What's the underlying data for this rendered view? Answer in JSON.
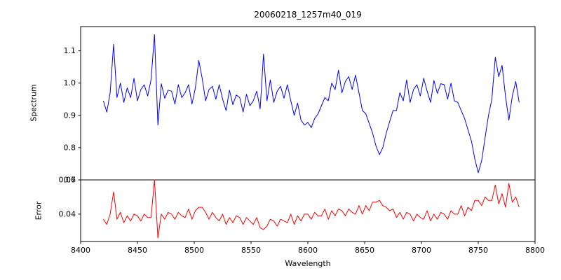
{
  "title": "20060218_1257m40_019",
  "xlabel": "Wavelength",
  "x_axis": {
    "label": "Wavelength",
    "xlim": [
      8400,
      8800
    ],
    "ticks": [
      8400,
      8450,
      8500,
      8550,
      8600,
      8650,
      8700,
      8750,
      8800
    ],
    "tick_labels": [
      "8400",
      "8450",
      "8500",
      "8550",
      "8600",
      "8650",
      "8700",
      "8750",
      "8800"
    ]
  },
  "chart_data": [
    {
      "type": "line",
      "name": "spectrum",
      "ylabel": "Spectrum",
      "color": "#0000ff",
      "xlim": [
        8400,
        8800
      ],
      "ylim": [
        0.7,
        1.175
      ],
      "ytick_values": [
        0.7,
        0.8,
        0.9,
        1.0,
        1.1
      ],
      "ytick_labels": [
        "0.7",
        "0.8",
        "0.9",
        "1.0",
        "1.1"
      ],
      "x_start": 8420,
      "x_step": 3,
      "values": [
        0.945,
        0.91,
        0.97,
        1.12,
        0.955,
        1.0,
        0.94,
        0.985,
        0.955,
        1.015,
        0.945,
        0.98,
        0.995,
        0.96,
        1.01,
        1.15,
        0.87,
        0.998,
        0.953,
        0.978,
        0.975,
        0.935,
        0.995,
        0.955,
        0.97,
        0.995,
        0.935,
        0.985,
        1.07,
        1.015,
        0.945,
        0.98,
        0.99,
        0.95,
        0.995,
        0.95,
        0.915,
        0.978,
        0.933,
        0.963,
        0.955,
        0.91,
        0.965,
        0.93,
        0.945,
        0.975,
        0.92,
        1.09,
        0.945,
        1.01,
        0.94,
        0.975,
        0.99,
        0.953,
        0.995,
        0.945,
        0.9,
        0.938,
        0.885,
        0.87,
        0.878,
        0.862,
        0.89,
        0.905,
        0.93,
        0.955,
        0.945,
        1.0,
        0.98,
        1.04,
        0.97,
        1.005,
        1.02,
        0.98,
        1.025,
        0.97,
        0.915,
        0.905,
        0.875,
        0.845,
        0.805,
        0.778,
        0.8,
        0.845,
        0.88,
        0.915,
        0.915,
        0.97,
        0.945,
        1.01,
        0.94,
        0.98,
        0.995,
        0.96,
        1.015,
        0.975,
        0.94,
        1.008,
        0.968,
        0.998,
        0.995,
        0.95,
        1.0,
        0.945,
        0.94,
        0.915,
        0.89,
        0.855,
        0.82,
        0.765,
        0.722,
        0.76,
        0.83,
        0.9,
        0.95,
        1.08,
        1.02,
        1.055,
        0.958,
        0.885,
        0.96,
        1.005,
        0.94
      ]
    },
    {
      "type": "line",
      "name": "error",
      "ylabel": "Error",
      "color": "#ff0000",
      "xlim": [
        8400,
        8800
      ],
      "ylim": [
        0.024,
        0.06
      ],
      "ytick_values": [
        0.04,
        0.06
      ],
      "ytick_labels": [
        "0.04",
        "0.06"
      ],
      "x_start": 8420,
      "x_step": 3,
      "values": [
        0.037,
        0.034,
        0.04,
        0.053,
        0.037,
        0.041,
        0.035,
        0.039,
        0.036,
        0.04,
        0.039,
        0.036,
        0.04,
        0.038,
        0.038,
        0.06,
        0.026,
        0.04,
        0.037,
        0.041,
        0.04,
        0.037,
        0.041,
        0.039,
        0.038,
        0.043,
        0.037,
        0.042,
        0.044,
        0.044,
        0.041,
        0.037,
        0.041,
        0.038,
        0.036,
        0.04,
        0.034,
        0.038,
        0.035,
        0.039,
        0.038,
        0.034,
        0.038,
        0.036,
        0.034,
        0.038,
        0.032,
        0.031,
        0.033,
        0.037,
        0.036,
        0.033,
        0.037,
        0.036,
        0.035,
        0.04,
        0.034,
        0.039,
        0.036,
        0.04,
        0.04,
        0.037,
        0.041,
        0.039,
        0.039,
        0.043,
        0.037,
        0.042,
        0.039,
        0.043,
        0.042,
        0.039,
        0.043,
        0.041,
        0.04,
        0.045,
        0.04,
        0.045,
        0.042,
        0.047,
        0.047,
        0.048,
        0.045,
        0.044,
        0.042,
        0.043,
        0.038,
        0.041,
        0.037,
        0.041,
        0.04,
        0.036,
        0.04,
        0.038,
        0.037,
        0.042,
        0.036,
        0.04,
        0.037,
        0.041,
        0.04,
        0.037,
        0.042,
        0.04,
        0.04,
        0.045,
        0.039,
        0.044,
        0.042,
        0.048,
        0.048,
        0.045,
        0.05,
        0.048,
        0.048,
        0.057,
        0.046,
        0.052,
        0.044,
        0.058,
        0.047,
        0.05,
        0.044
      ]
    }
  ]
}
